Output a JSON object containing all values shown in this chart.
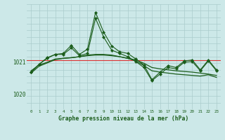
{
  "title": "Graphe pression niveau de la mer (hPa)",
  "background_color": "#cce8e8",
  "grid_color": "#aacccc",
  "line_color": "#1a5c1a",
  "red_line_color": "#dd3333",
  "xlim": [
    -0.5,
    23.5
  ],
  "ylim": [
    1019.55,
    1022.75
  ],
  "yticks": [
    1020,
    1021
  ],
  "xticks": [
    0,
    1,
    2,
    3,
    4,
    5,
    6,
    7,
    8,
    9,
    10,
    11,
    12,
    13,
    14,
    15,
    16,
    17,
    18,
    19,
    20,
    21,
    22,
    23
  ],
  "red_line_y": 1021.05,
  "smooth1_x": [
    0,
    1,
    2,
    3,
    4,
    5,
    6,
    7,
    8,
    9,
    10,
    11,
    12,
    13,
    14,
    15,
    16,
    17,
    18,
    19,
    20,
    21,
    22,
    23
  ],
  "smooth1_y": [
    1020.72,
    1020.9,
    1020.98,
    1021.08,
    1021.1,
    1021.12,
    1021.15,
    1021.18,
    1021.2,
    1021.2,
    1021.18,
    1021.15,
    1021.1,
    1021.05,
    1020.95,
    1020.82,
    1020.78,
    1020.75,
    1020.72,
    1020.7,
    1020.68,
    1020.65,
    1020.62,
    1020.58
  ],
  "smooth2_x": [
    0,
    1,
    2,
    3,
    4,
    5,
    6,
    7,
    8,
    9,
    10,
    11,
    12,
    13,
    14,
    15,
    16,
    17,
    18,
    19,
    20,
    21,
    22,
    23
  ],
  "smooth2_y": [
    1020.65,
    1020.86,
    1020.96,
    1021.06,
    1021.1,
    1021.12,
    1021.15,
    1021.2,
    1021.22,
    1021.22,
    1021.2,
    1021.15,
    1021.1,
    1021.02,
    1020.88,
    1020.72,
    1020.68,
    1020.65,
    1020.62,
    1020.6,
    1020.58,
    1020.56,
    1020.6,
    1020.52
  ],
  "spiky_x": [
    0,
    1,
    2,
    3,
    4,
    5,
    6,
    7,
    8,
    9,
    10,
    11,
    12,
    13,
    14,
    15,
    16,
    17,
    18,
    19,
    20,
    21,
    22,
    23
  ],
  "spiky_y": [
    1020.68,
    1020.92,
    1021.12,
    1021.22,
    1021.22,
    1021.42,
    1021.18,
    1021.25,
    1022.32,
    1021.75,
    1021.35,
    1021.25,
    1021.15,
    1021.0,
    1020.82,
    1020.42,
    1020.62,
    1020.82,
    1020.78,
    1020.98,
    1021.0,
    1020.72,
    1021.02,
    1020.72
  ],
  "spiky2_x": [
    0,
    1,
    2,
    3,
    4,
    5,
    6,
    7,
    8,
    9,
    10,
    11,
    12,
    13,
    14,
    15,
    16,
    17,
    18,
    19,
    20,
    21,
    22,
    23
  ],
  "spiky2_y": [
    1020.68,
    1020.92,
    1021.1,
    1021.22,
    1021.25,
    1021.5,
    1021.22,
    1021.38,
    1022.5,
    1021.9,
    1021.48,
    1021.3,
    1021.25,
    1021.08,
    1020.9,
    1020.45,
    1020.68,
    1020.88,
    1020.82,
    1021.02,
    1021.05,
    1020.75,
    1021.05,
    1020.75
  ]
}
